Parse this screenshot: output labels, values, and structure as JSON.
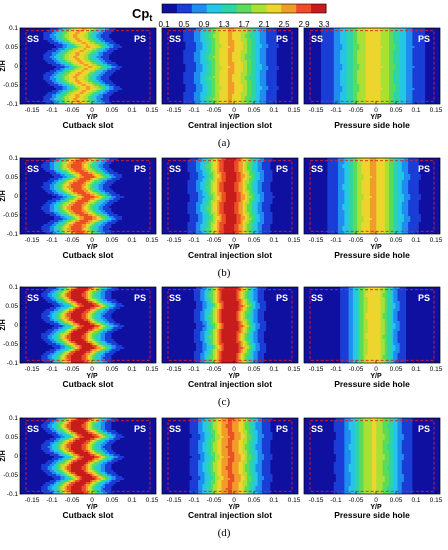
{
  "colorbar": {
    "label_main": "Cp",
    "label_sub": "t",
    "ticks": [
      "0.1",
      "0.5",
      "0.9",
      "1.3",
      "1.7",
      "2.1",
      "2.5",
      "2.9",
      "3.3"
    ],
    "colors": [
      "#1010a0",
      "#1a3dd6",
      "#1f8cf0",
      "#25c6e8",
      "#2fd3a8",
      "#58dc5a",
      "#a8e035",
      "#ecd52c",
      "#f29a2a",
      "#ec4f26",
      "#c71c1c"
    ]
  },
  "axes": {
    "ylabel": "Z/H",
    "xlabel": "Y/P",
    "xticks": [
      "-0.15",
      "-0.1",
      "-0.05",
      "0",
      "0.05",
      "0.1",
      "0.15"
    ],
    "yticks": [
      "0.1",
      "0.05",
      "0",
      "-0.05",
      "-0.1"
    ],
    "side_left": "SS",
    "side_right": "PS"
  },
  "panel_titles": [
    "Cutback slot",
    "Central injection slot",
    "Pressure side hole"
  ],
  "rows": [
    {
      "caption": "(a)"
    },
    {
      "caption": "(b)"
    },
    {
      "caption": "(c)"
    },
    {
      "caption": "(d)"
    }
  ],
  "chart_data": {
    "type": "heatmap",
    "variable": "Cpt",
    "colorbar_range": [
      0.1,
      3.3
    ],
    "x": {
      "label": "Y/P",
      "range": [
        -0.18,
        0.16
      ]
    },
    "y": {
      "label": "Z/H",
      "range": [
        -0.1,
        0.1
      ]
    },
    "columns": [
      "Cutback slot",
      "Central injection slot",
      "Pressure side hole"
    ],
    "rows": [
      "(a)",
      "(b)",
      "(c)",
      "(d)"
    ],
    "panels": [
      [
        {
          "peak": 2.3,
          "wavy": 1,
          "width": 0.05
        },
        {
          "peak": 2.3,
          "wavy": 0.25,
          "width": 0.07
        },
        {
          "peak": 2.1,
          "wavy": 0.15,
          "width": 0.08
        }
      ],
      [
        {
          "peak": 2.7,
          "wavy": 1,
          "width": 0.05
        },
        {
          "peak": 3.0,
          "wavy": 0.35,
          "width": 0.06
        },
        {
          "peak": 2.3,
          "wavy": 0.15,
          "width": 0.07
        }
      ],
      [
        {
          "peak": 3.1,
          "wavy": 1,
          "width": 0.05
        },
        {
          "peak": 3.3,
          "wavy": 0.4,
          "width": 0.05
        },
        {
          "peak": 2.2,
          "wavy": 0.1,
          "width": 0.05
        }
      ],
      [
        {
          "peak": 3.1,
          "wavy": 1,
          "width": 0.05
        },
        {
          "peak": 2.6,
          "wavy": 0.3,
          "width": 0.06
        },
        {
          "peak": 2.0,
          "wavy": 0.1,
          "width": 0.06
        }
      ]
    ]
  }
}
